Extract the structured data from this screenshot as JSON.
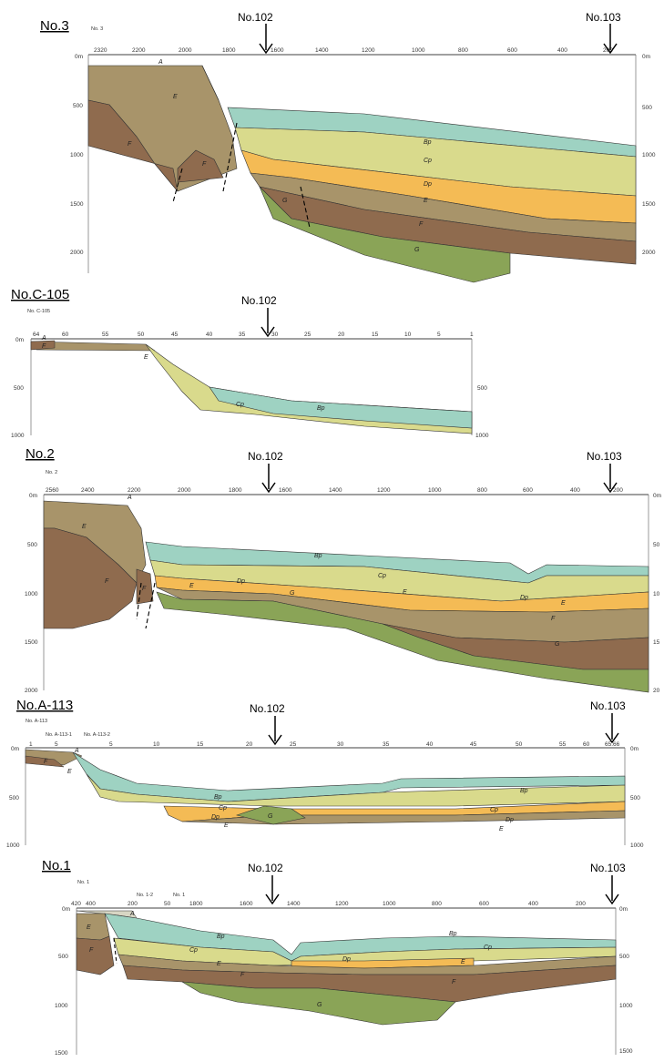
{
  "colors": {
    "A": "#d8d6c4",
    "Bp": "#9ed2c2",
    "Cp": "#d9da8c",
    "Dp": "#f4bb55",
    "E": "#a8946a",
    "F": "#8f6b4e",
    "G": "#8aa457"
  },
  "sections": [
    {
      "id": "no3",
      "title": "No.3",
      "small_label": "No. 3",
      "left_distances": [
        "2320",
        "2200",
        "2000",
        "1800",
        "1600",
        "1400",
        "1200",
        "1000",
        "800",
        "600",
        "400",
        "200"
      ],
      "depth_left": [
        "0m",
        "500",
        "1000",
        "1500",
        "2000"
      ],
      "depth_right": [
        "0m",
        "500",
        "1000",
        "1500",
        "2000"
      ],
      "markers": [
        "No.102",
        "No.103"
      ],
      "units": [
        "A",
        "E",
        "F",
        "F",
        "Bp",
        "Cp",
        "Dp",
        "E",
        "G",
        "F",
        "G"
      ]
    },
    {
      "id": "noc105",
      "title": "No.C-105",
      "small_label": "No. C-105",
      "left_distances": [
        "64",
        "60",
        "55",
        "50",
        "45",
        "40",
        "35",
        "30",
        "25",
        "20",
        "15",
        "10",
        "5",
        "1"
      ],
      "depth_left": [
        "0m",
        "500",
        "1000"
      ],
      "depth_right": [
        "500",
        "1000"
      ],
      "markers": [
        "No.102"
      ],
      "units": [
        "A",
        "F",
        "E",
        "Cp",
        "Bp"
      ]
    },
    {
      "id": "no2",
      "title": "No.2",
      "small_label": "No. 2",
      "left_distances": [
        "2560",
        "2400",
        "2200",
        "2000",
        "1800",
        "1600",
        "1400",
        "1200",
        "1000",
        "800",
        "600",
        "400",
        "200"
      ],
      "depth_left": [
        "0m",
        "500",
        "1000",
        "1500",
        "2000"
      ],
      "depth_right": [
        "0m",
        "50",
        "10",
        "15",
        "20"
      ],
      "markers": [
        "No.102",
        "No.103"
      ],
      "units": [
        "A",
        "E",
        "F",
        "F",
        "E",
        "Bp",
        "Cp",
        "Dp",
        "G",
        "E",
        "Dp",
        "E",
        "F",
        "G"
      ]
    },
    {
      "id": "noa113",
      "title": "No.A-113",
      "small_label": "No. A-113",
      "sub_labels": [
        "No. A-113-1",
        "No. A-113-2"
      ],
      "left_distances": [
        "1",
        "5",
        "5",
        "10",
        "15",
        "20",
        "25",
        "30",
        "35",
        "40",
        "45",
        "50",
        "55",
        "60",
        "65.66"
      ],
      "depth_left": [
        "0m",
        "500",
        "1000"
      ],
      "depth_right": [
        "0m",
        "500",
        "1000"
      ],
      "markers": [
        "No.102",
        "No.103"
      ],
      "units": [
        "A",
        "F",
        "E",
        "Bp",
        "Cp",
        "Dp",
        "E",
        "G",
        "Bp",
        "Cp",
        "Dp",
        "E"
      ]
    },
    {
      "id": "no1",
      "title": "No.1",
      "small_label": "No. 1",
      "sub_labels": [
        "No. 1-2",
        "No. 1"
      ],
      "left_distances": [
        "420",
        "400",
        "200",
        "50",
        "1800",
        "1600",
        "1400",
        "1200",
        "1000",
        "800",
        "600",
        "400",
        "200"
      ],
      "depth_left": [
        "0m",
        "500",
        "1000",
        "1500"
      ],
      "depth_right": [
        "0m",
        "500",
        "1000",
        "1500"
      ],
      "markers": [
        "No.102",
        "No.103"
      ],
      "units": [
        "A",
        "E",
        "F",
        "Bp",
        "Cp",
        "E",
        "Dp",
        "F",
        "G",
        "F",
        "E",
        "Bp",
        "Cp"
      ]
    }
  ]
}
